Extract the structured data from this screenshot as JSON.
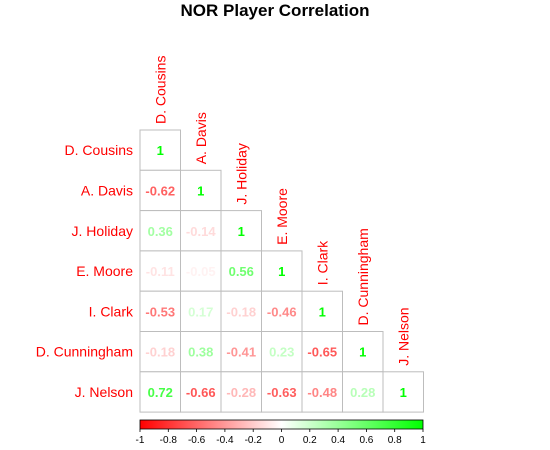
{
  "chart_data": {
    "type": "heatmap",
    "title": "NOR Player Correlation",
    "variables": [
      "D. Cousins",
      "A. Davis",
      "J. Holiday",
      "E. Moore",
      "I. Clark",
      "D. Cunningham",
      "J. Nelson"
    ],
    "matrix": [
      [
        1
      ],
      [
        -0.62,
        1
      ],
      [
        0.36,
        -0.14,
        1
      ],
      [
        -0.11,
        -0.05,
        0.56,
        1
      ],
      [
        -0.53,
        0.17,
        -0.18,
        -0.46,
        1
      ],
      [
        -0.18,
        0.38,
        -0.41,
        0.23,
        -0.65,
        1
      ],
      [
        0.72,
        -0.66,
        -0.28,
        -0.63,
        -0.48,
        0.28,
        1
      ]
    ],
    "value_labels": [
      [
        "1"
      ],
      [
        "-0.62",
        "1"
      ],
      [
        "0.36",
        "-0.14",
        "1"
      ],
      [
        "-0.11",
        "-0.05",
        "0.56",
        "1"
      ],
      [
        "-0.53",
        "0.17",
        "-0.18",
        "-0.46",
        "1"
      ],
      [
        "-0.18",
        "0.38",
        "-0.41",
        "0.23",
        "-0.65",
        "1"
      ],
      [
        "0.72",
        "-0.66",
        "-0.28",
        "-0.63",
        "-0.48",
        "0.28",
        "1"
      ]
    ],
    "color_scale": {
      "range": [
        -1,
        1
      ],
      "low_color": "#ff0000",
      "mid_color": "#ffffff",
      "high_color": "#00ff00",
      "ticks": [
        "-1",
        "-0.8",
        "-0.6",
        "-0.4",
        "-0.2",
        "0",
        "0.2",
        "0.4",
        "0.6",
        "0.8",
        "1"
      ],
      "tick_values": [
        -1,
        -0.8,
        -0.6,
        -0.4,
        -0.2,
        0,
        0.2,
        0.4,
        0.6,
        0.8,
        1
      ]
    },
    "label_color": "#ff0000",
    "legend_placement": "bottom"
  }
}
